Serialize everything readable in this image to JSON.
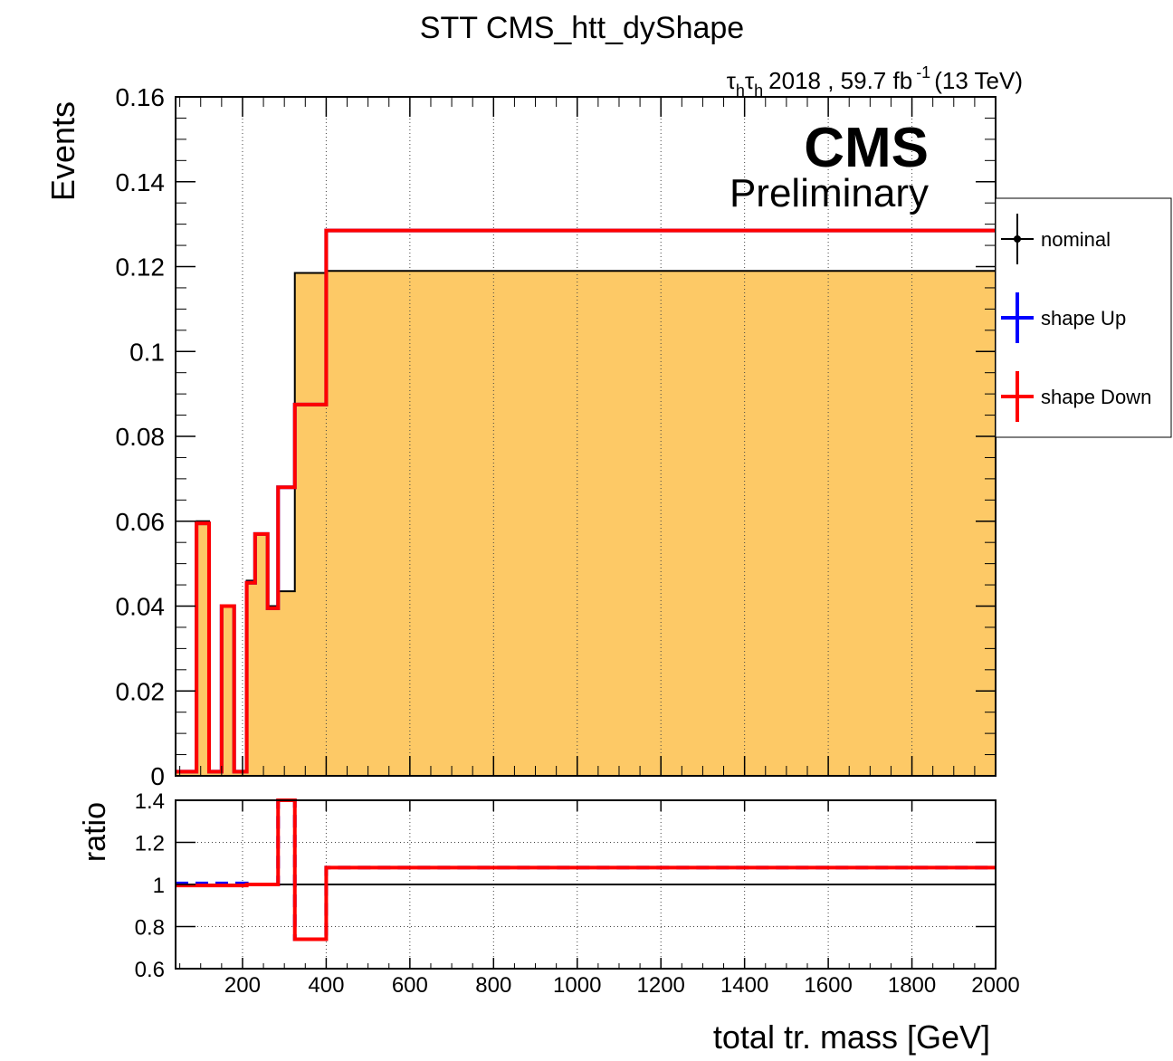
{
  "chart_data": {
    "type": "line",
    "title": "STT CMS_htt_dyShape",
    "lumi": {
      "channel_base": "τ",
      "channel_sub": "h",
      "channel_base2": "τ",
      "channel_sub2": "h",
      "year": "2018 , 59.7 fb",
      "exponent": "-1",
      "energy": "(13 TeV)"
    },
    "cms_label": "CMS",
    "preliminary_label": "Preliminary",
    "xlabel": "total tr. mass [GeV]",
    "ylabel": "Events",
    "ratio_ylabel": "ratio",
    "xlim": [
      40,
      2000
    ],
    "ylim": [
      0,
      0.16
    ],
    "ratio_ylim": [
      0.6,
      1.4
    ],
    "x_ticks": [
      "200",
      "400",
      "600",
      "800",
      "1000",
      "1200",
      "1400",
      "1600",
      "1800",
      "2000"
    ],
    "y_ticks": [
      "0",
      "0.02",
      "0.04",
      "0.06",
      "0.08",
      "0.1",
      "0.12",
      "0.14",
      "0.16"
    ],
    "ratio_ticks": [
      "0.6",
      "0.8",
      "1",
      "1.2",
      "1.4"
    ],
    "grid": "vertical and horizontal dotted",
    "legend_position": "right, outside plot",
    "bin_edges": [
      40,
      90,
      120,
      150,
      180,
      210,
      230,
      260,
      285,
      325,
      400,
      2000
    ],
    "series": [
      {
        "name": "nominal",
        "color": "#000000",
        "fill": "#fdc966",
        "values": [
          0.001,
          0.06,
          0.001,
          0.04,
          0.001,
          0.046,
          0.057,
          0.04,
          0.0435,
          0.1185,
          0.119
        ]
      },
      {
        "name": "shape Up",
        "color": "#0000ff",
        "values": [
          0.001,
          0.0595,
          0.001,
          0.04,
          0.001,
          0.0455,
          0.057,
          0.0395,
          0.068,
          0.0875,
          0.1285
        ]
      },
      {
        "name": "shape Down",
        "color": "#ff0000",
        "values": [
          0.001,
          0.0595,
          0.001,
          0.04,
          0.001,
          0.0455,
          0.057,
          0.0395,
          0.068,
          0.0875,
          0.1285
        ]
      }
    ],
    "ratio_series": [
      {
        "name": "nominal",
        "color": "#000000",
        "values": [
          1,
          1,
          1,
          1,
          1,
          1,
          1,
          1,
          1,
          1,
          1
        ]
      },
      {
        "name": "shape Up",
        "color": "#0000ff",
        "values": [
          1.005,
          1.005,
          1.005,
          1.005,
          1.005,
          1.0,
          1.0,
          1.0,
          1.56,
          0.74,
          1.08
        ]
      },
      {
        "name": "shape Down",
        "color": "#ff0000",
        "values": [
          0.995,
          0.995,
          0.995,
          0.995,
          0.995,
          1.0,
          1.0,
          1.0,
          1.56,
          0.74,
          1.08
        ]
      }
    ]
  }
}
